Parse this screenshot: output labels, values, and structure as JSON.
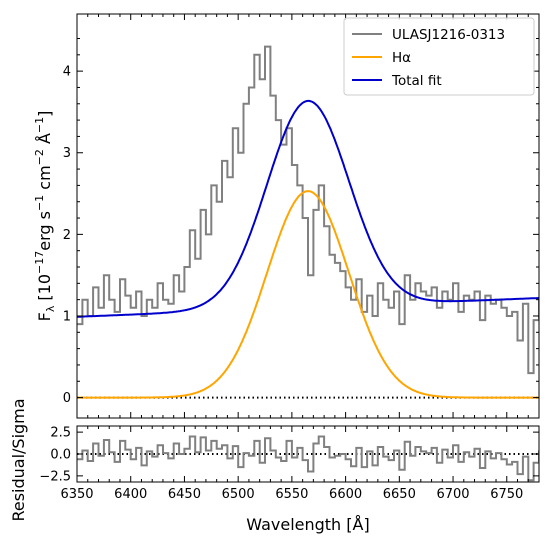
{
  "figure": {
    "background": "#ffffff",
    "x_axis_label": "Wavelength [Å]"
  },
  "legend": {
    "placement": "top-right",
    "entries": [
      {
        "label": "ULASJ1216-0313",
        "color": "#808080"
      },
      {
        "label": "Hα",
        "color": "#ffa500"
      },
      {
        "label": "Total fit",
        "color": "#0000cd"
      }
    ]
  },
  "chart_data": [
    {
      "type": "line",
      "panel": "spectrum",
      "title": "",
      "xlabel": "Wavelength [Å]",
      "ylabel": "F_λ [10^-17 erg s^-1 cm^-2 Å^-1]",
      "ylabel_parts": {
        "main": "F",
        "sub": "λ",
        "bracket_open": " [10",
        "exp1": "−17",
        "erg": "erg s",
        "exp2": "−1",
        "cm": " cm",
        "exp3": "−2",
        "angstrom": " Å",
        "exp4": "−1",
        "bracket_close": "]"
      },
      "xlim": [
        6350,
        6780
      ],
      "ylim": [
        -0.25,
        4.7
      ],
      "x_ticks": [
        6350,
        6400,
        6450,
        6500,
        6550,
        6600,
        6650,
        6700,
        6750
      ],
      "y_ticks": [
        0,
        1,
        2,
        3,
        4
      ],
      "grid": false,
      "zero_line": {
        "y": 0,
        "style": "dotted",
        "color": "#000000"
      },
      "series": [
        {
          "name": "ULASJ1216-0313",
          "color": "#808080",
          "style": "steps",
          "x_start": 6350,
          "x_step": 5,
          "values": [
            0.9,
            1.2,
            1.0,
            1.35,
            1.1,
            1.5,
            1.2,
            1.05,
            1.45,
            1.25,
            1.1,
            1.3,
            1.0,
            1.2,
            1.1,
            1.4,
            1.2,
            1.15,
            1.5,
            1.3,
            1.6,
            2.05,
            1.7,
            2.3,
            2.0,
            2.6,
            2.4,
            2.9,
            2.7,
            3.3,
            3.0,
            3.6,
            3.8,
            4.2,
            3.9,
            4.3,
            3.7,
            3.4,
            3.1,
            3.3,
            2.85,
            2.6,
            2.2,
            1.5,
            2.3,
            2.6,
            2.1,
            1.75,
            1.65,
            1.55,
            1.35,
            1.2,
            1.45,
            1.05,
            1.25,
            1.0,
            1.4,
            1.2,
            1.1,
            1.3,
            0.9,
            1.5,
            1.2,
            1.4,
            1.3,
            1.25,
            1.35,
            1.1,
            1.3,
            1.2,
            1.4,
            1.05,
            1.25,
            1.2,
            1.3,
            0.95,
            1.25,
            1.15,
            1.2,
            1.1,
            1.0,
            1.05,
            0.7,
            1.15,
            0.3,
            0.95,
            1.2
          ]
        },
        {
          "name": "Hα",
          "color": "#ffa500",
          "model": "gaussian",
          "center": 6565,
          "amplitude": 2.53,
          "sigma": 38
        },
        {
          "name": "Total fit",
          "color": "#0000cd",
          "model": "gaussian_plus_linear",
          "center": 6565,
          "amplitude": 2.53,
          "sigma": 38,
          "continuum_start": [
            6350,
            0.99
          ],
          "continuum_end": [
            6780,
            1.22
          ]
        }
      ]
    },
    {
      "type": "line",
      "panel": "residual",
      "title": "",
      "ylabel": "Residual/Sigma",
      "xlim": [
        6350,
        6780
      ],
      "ylim": [
        -3.2,
        3.2
      ],
      "y_ticks": [
        -2.5,
        0.0,
        2.5
      ],
      "y_tick_labels": [
        "−2.5",
        "0.0",
        "2.5"
      ],
      "x_tick_labels": [
        "6350",
        "6400",
        "6450",
        "6500",
        "6550",
        "6600",
        "6650",
        "6700",
        "6750"
      ],
      "zero_line": {
        "y": 0,
        "style": "dotted",
        "color": "#000000"
      },
      "series": [
        {
          "color": "#808080",
          "style": "steps",
          "x_start": 6350,
          "x_step": 5,
          "values": [
            -0.6,
            0.4,
            -0.8,
            1.2,
            -0.2,
            1.6,
            0.2,
            -0.9,
            1.5,
            0.5,
            -0.6,
            0.7,
            -1.3,
            0.3,
            -0.3,
            1.0,
            0.1,
            -0.5,
            1.2,
            0.0,
            0.6,
            2.0,
            0.2,
            1.9,
            0.4,
            1.5,
            0.6,
            1.0,
            -0.5,
            0.9,
            -1.5,
            0.1,
            -0.2,
            1.5,
            -1.0,
            1.8,
            0.4,
            -0.4,
            -0.8,
            1.5,
            -0.4,
            0.7,
            -0.7,
            -2.0,
            1.2,
            2.0,
            0.8,
            -0.4,
            -0.2,
            0.0,
            -0.6,
            -1.4,
            0.7,
            -1.5,
            0.3,
            -1.3,
            0.8,
            -0.3,
            -0.7,
            0.4,
            -1.8,
            1.4,
            -0.2,
            0.8,
            0.3,
            0.1,
            0.7,
            -1.0,
            0.5,
            -0.4,
            1.0,
            -0.9,
            0.2,
            -0.3,
            0.6,
            -1.6,
            0.3,
            -0.5,
            0.1,
            -0.6,
            -1.2,
            -0.9,
            -2.3,
            -0.3,
            -3.0,
            -1.0,
            0.3
          ]
        }
      ]
    }
  ]
}
